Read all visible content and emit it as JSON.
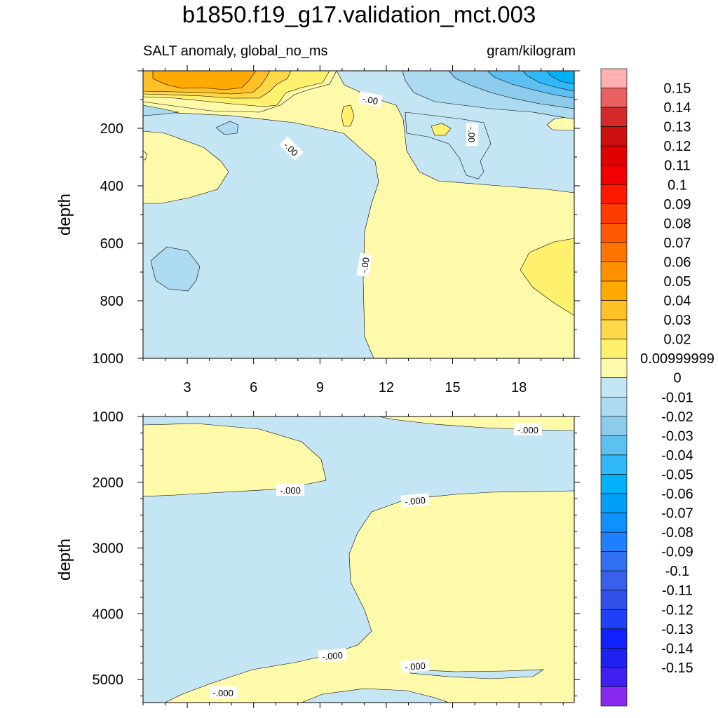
{
  "title": "b1850.f19_g17.validation_mct.003",
  "subtitle_left": "SALT anomaly, global_no_ms",
  "subtitle_right": "gram/kilogram",
  "colors": {
    "pos_001": "#fffaaa",
    "pos_002": "#fff06e",
    "pos_003": "#ffd84a",
    "pos_004": "#ffc028",
    "pos_005": "#ffaa00",
    "neg_001": "#c4e6f4",
    "neg_002": "#acdaf0",
    "neg_003": "#8ccbec",
    "neg_004": "#5cc0f0",
    "neg_005": "#30b8f8",
    "neg_006": "#00b0f8"
  },
  "chart_data": [
    {
      "type": "contour",
      "panel": "upper",
      "ylabel": "depth",
      "xlim": [
        1,
        20.5
      ],
      "ylim": [
        1000,
        0
      ],
      "x_ticks": [
        "3",
        "6",
        "9",
        "12",
        "15",
        "18"
      ],
      "y_ticks": [
        "200",
        "400",
        "600",
        "800",
        "1000"
      ],
      "contour_labels": [
        "-.00",
        "-.00",
        "-.00",
        "-.00"
      ]
    },
    {
      "type": "contour",
      "panel": "lower",
      "ylabel": "depth",
      "xlim": [
        1,
        20.5
      ],
      "ylim": [
        5350,
        1000
      ],
      "y_ticks": [
        "1000",
        "2000",
        "3000",
        "4000",
        "5000"
      ],
      "contour_labels": [
        "-.000",
        "-.000",
        "-.000",
        "-.000",
        "-.000",
        "-.000"
      ]
    }
  ],
  "colorbar": {
    "levels": [
      "0.15",
      "0.14",
      "0.13",
      "0.12",
      "0.11",
      "0.1",
      "0.09",
      "0.08",
      "0.07",
      "0.06",
      "0.05",
      "0.04",
      "0.03",
      "0.02",
      "0.00999999",
      "0",
      "-0.01",
      "-0.02",
      "-0.03",
      "-0.04",
      "-0.05",
      "-0.06",
      "-0.07",
      "-0.08",
      "-0.09",
      "-0.1",
      "-0.11",
      "-0.12",
      "-0.13",
      "-0.14",
      "-0.15"
    ],
    "colors": [
      "#ffb0b0",
      "#e86060",
      "#d42a2a",
      "#cc1010",
      "#e00000",
      "#f00000",
      "#ff1800",
      "#ff3c00",
      "#ff5800",
      "#ff7400",
      "#ff9000",
      "#ffaa00",
      "#ffc028",
      "#ffd84a",
      "#fff06e",
      "#fffaaa",
      "#c4e6f4",
      "#acdaf0",
      "#8ccbec",
      "#5cc0f0",
      "#30b8f8",
      "#00b0f8",
      "#00a0f8",
      "#1090ff",
      "#2080ff",
      "#3070f0",
      "#3860e8",
      "#3050e8",
      "#2040f8",
      "#1020ff",
      "#2020f0",
      "#4020f0",
      "#8a2af0"
    ]
  }
}
